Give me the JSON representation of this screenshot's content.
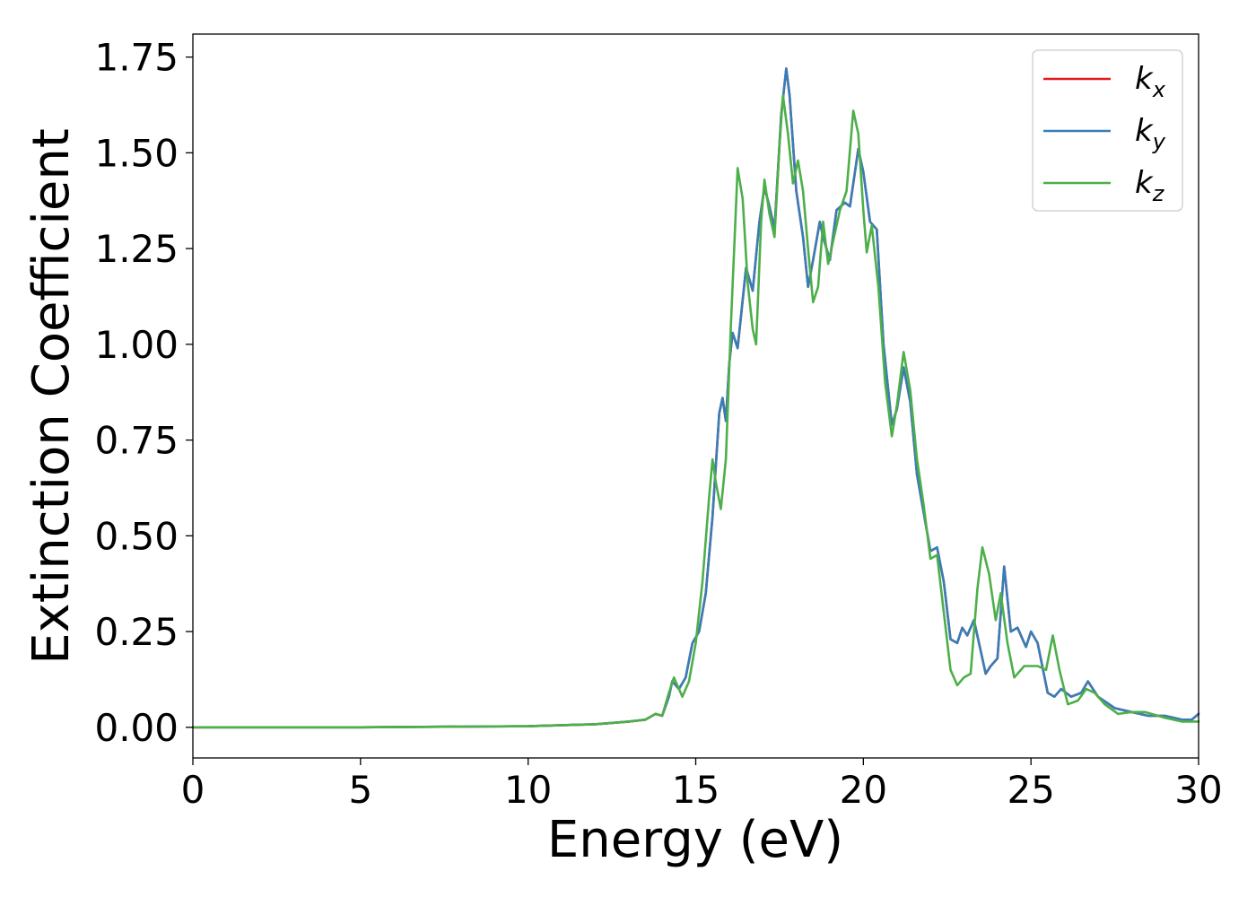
{
  "chart_data": {
    "type": "line",
    "xlabel": "Energy (eV)",
    "ylabel": "Extinction Coefficient",
    "xlim": [
      0,
      30
    ],
    "ylim": [
      -0.08,
      1.81
    ],
    "xticks": [
      0,
      5,
      10,
      15,
      20,
      25,
      30
    ],
    "xtick_labels": [
      "0",
      "5",
      "10",
      "15",
      "20",
      "25",
      "30"
    ],
    "yticks": [
      0,
      0.25,
      0.5,
      0.75,
      1.0,
      1.25,
      1.5,
      1.75
    ],
    "ytick_labels": [
      "0.00",
      "0.25",
      "0.50",
      "0.75",
      "1.00",
      "1.25",
      "1.50",
      "1.75"
    ],
    "grid": false,
    "legend_position": "top-right",
    "series": [
      {
        "name": "k_x",
        "legend_main": "k",
        "legend_sub": "x",
        "color": "#e41a1c",
        "points": [
          [
            0,
            0.0
          ],
          [
            5,
            0.0
          ],
          [
            10,
            0.003
          ],
          [
            12,
            0.008
          ],
          [
            13,
            0.015
          ],
          [
            13.5,
            0.02
          ],
          [
            13.8,
            0.035
          ],
          [
            14.0,
            0.03
          ],
          [
            14.2,
            0.08
          ],
          [
            14.3,
            0.12
          ],
          [
            14.5,
            0.1
          ],
          [
            14.7,
            0.13
          ],
          [
            14.9,
            0.22
          ],
          [
            15.1,
            0.25
          ],
          [
            15.3,
            0.35
          ],
          [
            15.5,
            0.55
          ],
          [
            15.7,
            0.82
          ],
          [
            15.8,
            0.86
          ],
          [
            15.9,
            0.8
          ],
          [
            16.0,
            0.95
          ],
          [
            16.1,
            1.03
          ],
          [
            16.25,
            0.99
          ],
          [
            16.5,
            1.2
          ],
          [
            16.7,
            1.14
          ],
          [
            16.9,
            1.32
          ],
          [
            17.05,
            1.41
          ],
          [
            17.2,
            1.36
          ],
          [
            17.35,
            1.3
          ],
          [
            17.55,
            1.6
          ],
          [
            17.7,
            1.72
          ],
          [
            17.8,
            1.65
          ],
          [
            18.0,
            1.4
          ],
          [
            18.2,
            1.28
          ],
          [
            18.35,
            1.15
          ],
          [
            18.5,
            1.22
          ],
          [
            18.7,
            1.32
          ],
          [
            18.8,
            1.28
          ],
          [
            19.0,
            1.22
          ],
          [
            19.2,
            1.35
          ],
          [
            19.45,
            1.37
          ],
          [
            19.6,
            1.36
          ],
          [
            19.85,
            1.51
          ],
          [
            20.0,
            1.45
          ],
          [
            20.2,
            1.32
          ],
          [
            20.4,
            1.3
          ],
          [
            20.6,
            1.0
          ],
          [
            20.85,
            0.79
          ],
          [
            21.0,
            0.83
          ],
          [
            21.2,
            0.94
          ],
          [
            21.4,
            0.85
          ],
          [
            21.6,
            0.66
          ],
          [
            21.8,
            0.56
          ],
          [
            22.0,
            0.46
          ],
          [
            22.2,
            0.47
          ],
          [
            22.4,
            0.38
          ],
          [
            22.6,
            0.23
          ],
          [
            22.8,
            0.22
          ],
          [
            22.95,
            0.26
          ],
          [
            23.1,
            0.24
          ],
          [
            23.3,
            0.28
          ],
          [
            23.5,
            0.2
          ],
          [
            23.65,
            0.14
          ],
          [
            23.8,
            0.16
          ],
          [
            24.0,
            0.18
          ],
          [
            24.2,
            0.42
          ],
          [
            24.4,
            0.25
          ],
          [
            24.6,
            0.26
          ],
          [
            24.85,
            0.21
          ],
          [
            25.0,
            0.25
          ],
          [
            25.2,
            0.22
          ],
          [
            25.5,
            0.09
          ],
          [
            25.7,
            0.08
          ],
          [
            25.9,
            0.1
          ],
          [
            26.2,
            0.08
          ],
          [
            26.5,
            0.09
          ],
          [
            26.7,
            0.12
          ],
          [
            27.0,
            0.08
          ],
          [
            27.5,
            0.05
          ],
          [
            28.0,
            0.04
          ],
          [
            28.5,
            0.03
          ],
          [
            29.0,
            0.03
          ],
          [
            29.5,
            0.02
          ],
          [
            29.8,
            0.02
          ],
          [
            30,
            0.035
          ]
        ]
      },
      {
        "name": "k_y",
        "legend_main": "k",
        "legend_sub": "y",
        "color": "#377eb8",
        "points": [
          [
            0,
            0.0
          ],
          [
            5,
            0.0
          ],
          [
            10,
            0.003
          ],
          [
            12,
            0.008
          ],
          [
            13,
            0.015
          ],
          [
            13.5,
            0.02
          ],
          [
            13.8,
            0.035
          ],
          [
            14.0,
            0.03
          ],
          [
            14.2,
            0.08
          ],
          [
            14.3,
            0.12
          ],
          [
            14.5,
            0.1
          ],
          [
            14.7,
            0.13
          ],
          [
            14.9,
            0.22
          ],
          [
            15.1,
            0.25
          ],
          [
            15.3,
            0.35
          ],
          [
            15.5,
            0.55
          ],
          [
            15.7,
            0.82
          ],
          [
            15.8,
            0.86
          ],
          [
            15.9,
            0.8
          ],
          [
            16.0,
            0.95
          ],
          [
            16.1,
            1.03
          ],
          [
            16.25,
            0.99
          ],
          [
            16.5,
            1.2
          ],
          [
            16.7,
            1.14
          ],
          [
            16.9,
            1.32
          ],
          [
            17.05,
            1.41
          ],
          [
            17.2,
            1.36
          ],
          [
            17.35,
            1.3
          ],
          [
            17.55,
            1.6
          ],
          [
            17.7,
            1.72
          ],
          [
            17.8,
            1.65
          ],
          [
            18.0,
            1.4
          ],
          [
            18.2,
            1.28
          ],
          [
            18.35,
            1.15
          ],
          [
            18.5,
            1.22
          ],
          [
            18.7,
            1.32
          ],
          [
            18.8,
            1.28
          ],
          [
            19.0,
            1.22
          ],
          [
            19.2,
            1.35
          ],
          [
            19.45,
            1.37
          ],
          [
            19.6,
            1.36
          ],
          [
            19.85,
            1.51
          ],
          [
            20.0,
            1.45
          ],
          [
            20.2,
            1.32
          ],
          [
            20.4,
            1.3
          ],
          [
            20.6,
            1.0
          ],
          [
            20.85,
            0.79
          ],
          [
            21.0,
            0.83
          ],
          [
            21.2,
            0.94
          ],
          [
            21.4,
            0.85
          ],
          [
            21.6,
            0.66
          ],
          [
            21.8,
            0.56
          ],
          [
            22.0,
            0.46
          ],
          [
            22.2,
            0.47
          ],
          [
            22.4,
            0.38
          ],
          [
            22.6,
            0.23
          ],
          [
            22.8,
            0.22
          ],
          [
            22.95,
            0.26
          ],
          [
            23.1,
            0.24
          ],
          [
            23.3,
            0.28
          ],
          [
            23.5,
            0.2
          ],
          [
            23.65,
            0.14
          ],
          [
            23.8,
            0.16
          ],
          [
            24.0,
            0.18
          ],
          [
            24.2,
            0.42
          ],
          [
            24.4,
            0.25
          ],
          [
            24.6,
            0.26
          ],
          [
            24.85,
            0.21
          ],
          [
            25.0,
            0.25
          ],
          [
            25.2,
            0.22
          ],
          [
            25.5,
            0.09
          ],
          [
            25.7,
            0.08
          ],
          [
            25.9,
            0.1
          ],
          [
            26.2,
            0.08
          ],
          [
            26.5,
            0.09
          ],
          [
            26.7,
            0.12
          ],
          [
            27.0,
            0.08
          ],
          [
            27.5,
            0.05
          ],
          [
            28.0,
            0.04
          ],
          [
            28.5,
            0.03
          ],
          [
            29.0,
            0.03
          ],
          [
            29.5,
            0.02
          ],
          [
            29.8,
            0.02
          ],
          [
            30,
            0.035
          ]
        ]
      },
      {
        "name": "k_z",
        "legend_main": "k",
        "legend_sub": "z",
        "color": "#4daf4a",
        "points": [
          [
            0,
            0.0
          ],
          [
            5,
            0.0
          ],
          [
            10,
            0.003
          ],
          [
            12,
            0.008
          ],
          [
            13,
            0.015
          ],
          [
            13.5,
            0.02
          ],
          [
            13.8,
            0.035
          ],
          [
            14.0,
            0.03
          ],
          [
            14.2,
            0.09
          ],
          [
            14.35,
            0.13
          ],
          [
            14.6,
            0.08
          ],
          [
            14.8,
            0.12
          ],
          [
            15.0,
            0.22
          ],
          [
            15.2,
            0.38
          ],
          [
            15.4,
            0.6
          ],
          [
            15.5,
            0.7
          ],
          [
            15.6,
            0.64
          ],
          [
            15.75,
            0.57
          ],
          [
            15.9,
            0.7
          ],
          [
            16.05,
            1.05
          ],
          [
            16.25,
            1.46
          ],
          [
            16.4,
            1.38
          ],
          [
            16.55,
            1.16
          ],
          [
            16.7,
            1.04
          ],
          [
            16.8,
            1.0
          ],
          [
            16.95,
            1.32
          ],
          [
            17.05,
            1.43
          ],
          [
            17.2,
            1.34
          ],
          [
            17.35,
            1.28
          ],
          [
            17.5,
            1.52
          ],
          [
            17.6,
            1.65
          ],
          [
            17.75,
            1.55
          ],
          [
            17.9,
            1.42
          ],
          [
            18.05,
            1.48
          ],
          [
            18.2,
            1.4
          ],
          [
            18.35,
            1.25
          ],
          [
            18.5,
            1.11
          ],
          [
            18.65,
            1.15
          ],
          [
            18.8,
            1.32
          ],
          [
            18.95,
            1.21
          ],
          [
            19.1,
            1.27
          ],
          [
            19.3,
            1.35
          ],
          [
            19.5,
            1.4
          ],
          [
            19.7,
            1.61
          ],
          [
            19.85,
            1.55
          ],
          [
            20.0,
            1.35
          ],
          [
            20.1,
            1.24
          ],
          [
            20.25,
            1.31
          ],
          [
            20.45,
            1.15
          ],
          [
            20.65,
            0.9
          ],
          [
            20.85,
            0.76
          ],
          [
            21.0,
            0.84
          ],
          [
            21.2,
            0.98
          ],
          [
            21.4,
            0.88
          ],
          [
            21.6,
            0.7
          ],
          [
            21.8,
            0.58
          ],
          [
            22.0,
            0.44
          ],
          [
            22.2,
            0.45
          ],
          [
            22.4,
            0.3
          ],
          [
            22.6,
            0.15
          ],
          [
            22.8,
            0.11
          ],
          [
            23.0,
            0.13
          ],
          [
            23.2,
            0.14
          ],
          [
            23.4,
            0.36
          ],
          [
            23.55,
            0.47
          ],
          [
            23.75,
            0.4
          ],
          [
            23.95,
            0.28
          ],
          [
            24.1,
            0.35
          ],
          [
            24.3,
            0.22
          ],
          [
            24.5,
            0.13
          ],
          [
            24.8,
            0.16
          ],
          [
            25.2,
            0.16
          ],
          [
            25.45,
            0.15
          ],
          [
            25.65,
            0.24
          ],
          [
            25.85,
            0.15
          ],
          [
            26.1,
            0.06
          ],
          [
            26.4,
            0.07
          ],
          [
            26.65,
            0.1
          ],
          [
            26.9,
            0.09
          ],
          [
            27.2,
            0.06
          ],
          [
            27.6,
            0.035
          ],
          [
            28.0,
            0.04
          ],
          [
            28.4,
            0.04
          ],
          [
            29.0,
            0.025
          ],
          [
            29.5,
            0.015
          ],
          [
            30,
            0.015
          ]
        ]
      }
    ]
  }
}
